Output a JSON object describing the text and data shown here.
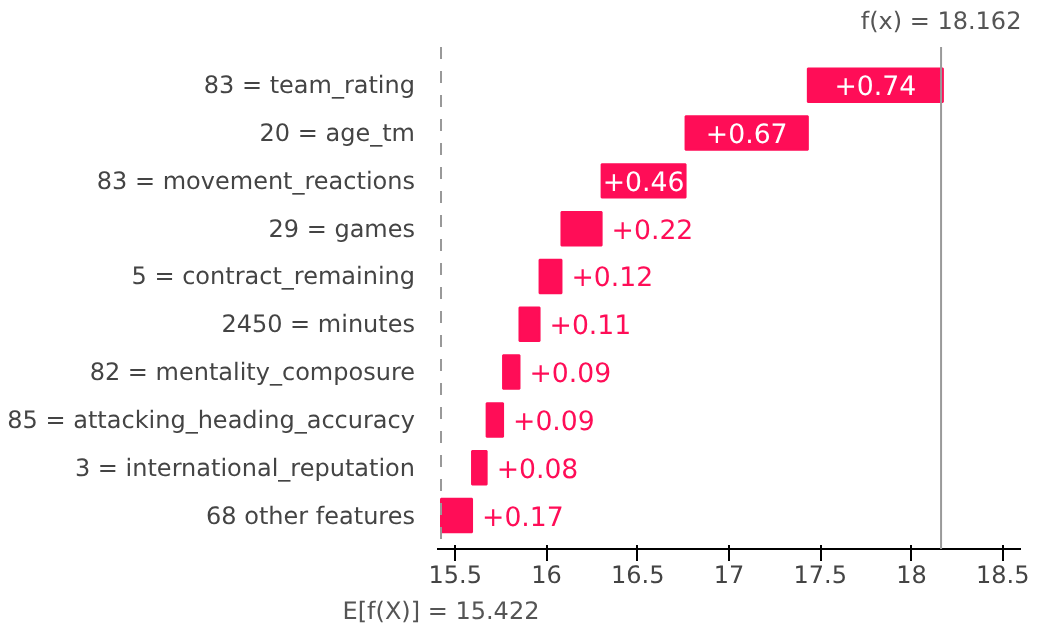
{
  "chart_data": {
    "type": "bar",
    "orientation": "horizontal",
    "categories": [
      "83 = team_rating",
      "20 = age_tm",
      "83 = movement_reactions",
      "29 = games",
      "5 = contract_remaining",
      "2450 = minutes",
      "82 = mentality_composure",
      "85 = attacking_heading_accuracy",
      "3 = international_reputation",
      "68 other features"
    ],
    "values": [
      0.74,
      0.67,
      0.46,
      0.22,
      0.12,
      0.11,
      0.09,
      0.09,
      0.08,
      0.17
    ],
    "base": [
      17.432,
      16.762,
      16.302,
      16.082,
      15.962,
      15.852,
      15.762,
      15.672,
      15.592,
      15.422
    ],
    "value_labels": [
      "+0.74",
      "+0.67",
      "+0.46",
      "+0.22",
      "+0.12",
      "+0.11",
      "+0.09",
      "+0.09",
      "+0.08",
      "+0.17"
    ],
    "color": "#ff0d57",
    "xlim": [
      15.4,
      18.6
    ],
    "xticks": [
      15.5,
      16.0,
      16.5,
      17.0,
      17.5,
      18.0,
      18.5
    ],
    "ref_lines": [
      {
        "axis": "x",
        "value": 18.162,
        "label": "f(x) = 18.162",
        "color": "#999999",
        "line_style": "solid"
      },
      {
        "axis": "x",
        "value": 15.422,
        "label": "E[f(X)] = 15.422",
        "color": "#999999",
        "line_style": "dashed"
      }
    ],
    "grid": false
  }
}
